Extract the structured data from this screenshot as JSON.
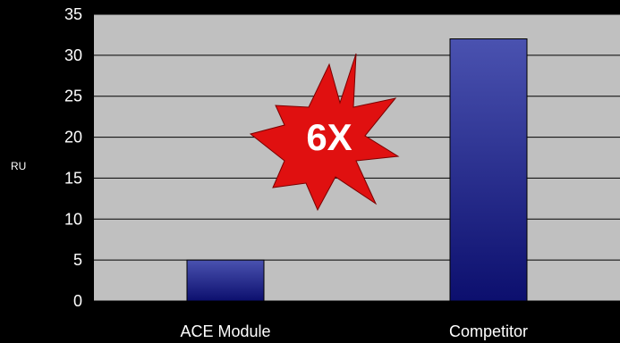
{
  "chart_data": {
    "type": "bar",
    "categories": [
      "ACE Module",
      "Competitor"
    ],
    "values": [
      5,
      32
    ],
    "title": "",
    "xlabel": "",
    "ylabel": "RU",
    "ylim": [
      0,
      35
    ],
    "yticks": [
      0,
      5,
      10,
      15,
      20,
      25,
      30,
      35
    ],
    "grid": true,
    "annotation": "6X"
  },
  "colors": {
    "background": "#000000",
    "plot_area": "#c0c0c0",
    "bar_top": "#4a52b0",
    "bar_bottom": "#0c0f6e",
    "burst": "#e01010",
    "text": "#ffffff"
  }
}
